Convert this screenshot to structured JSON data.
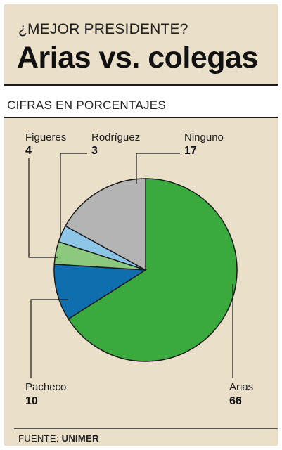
{
  "header": {
    "kicker": "¿MEJOR PRESIDENTE?",
    "title": "Arias vs. colegas"
  },
  "subtitle": "CIFRAS EN PORCENTAJES",
  "footer": {
    "prefix": "FUENTE: ",
    "source": "UNIMER"
  },
  "chart_data": {
    "type": "pie",
    "title": "",
    "slices": [
      {
        "name": "Arias",
        "value": 66,
        "color": "#3aa93e"
      },
      {
        "name": "Pacheco",
        "value": 10,
        "color": "#0f6fae"
      },
      {
        "name": "Figueres",
        "value": 4,
        "color": "#8cc97f"
      },
      {
        "name": "Rodríguez",
        "value": 3,
        "color": "#8ec6e8"
      },
      {
        "name": "Ninguno",
        "value": 17,
        "color": "#b4b4b4"
      }
    ],
    "start": "top",
    "direction": "clockwise",
    "legend": "callout labels with leader lines"
  }
}
